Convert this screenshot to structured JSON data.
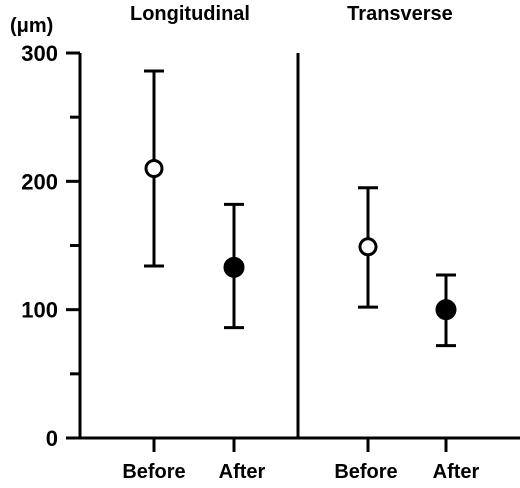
{
  "chart_data": {
    "type": "scatter",
    "y_unit_label": "(μm)",
    "ylim": [
      0,
      300
    ],
    "y_ticks": [
      0,
      100,
      200,
      300
    ],
    "y_minor_ticks": [
      50,
      150,
      250
    ],
    "grid": false,
    "panels": [
      {
        "title": "Longitudinal",
        "categories": [
          "Before",
          "After"
        ],
        "points": [
          {
            "category": "Before",
            "mean": 210,
            "upper": 286,
            "lower": 134,
            "marker": "open-circle"
          },
          {
            "category": "After",
            "mean": 133,
            "upper": 182,
            "lower": 86,
            "marker": "filled-circle"
          }
        ]
      },
      {
        "title": "Transverse",
        "categories": [
          "Before",
          "After"
        ],
        "points": [
          {
            "category": "Before",
            "mean": 149,
            "upper": 195,
            "lower": 102,
            "marker": "open-circle"
          },
          {
            "category": "After",
            "mean": 100,
            "upper": 127,
            "lower": 72,
            "marker": "filled-circle"
          }
        ]
      }
    ]
  }
}
